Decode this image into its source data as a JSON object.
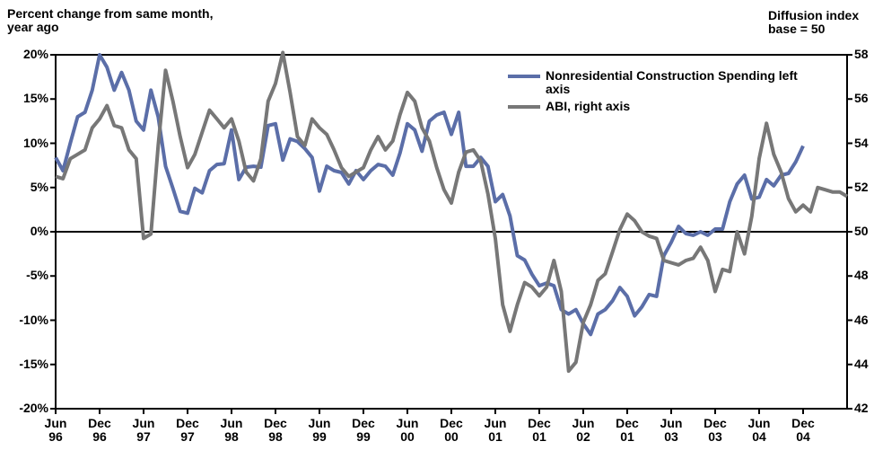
{
  "chart_data": {
    "type": "line",
    "y_axis_label": "Percent change from same month, year ago",
    "y2_axis_label": "Diffusion index base = 50",
    "x": [
      "Jun 96",
      null,
      null,
      null,
      null,
      null,
      "Dec 96",
      null,
      null,
      null,
      null,
      null,
      "Jun 97",
      null,
      null,
      null,
      null,
      null,
      "Dec 97",
      null,
      null,
      null,
      null,
      null,
      "Jun 98",
      null,
      null,
      null,
      null,
      null,
      "Dec 98",
      null,
      null,
      null,
      null,
      null,
      "Jun 99",
      null,
      null,
      null,
      null,
      null,
      "Dec 99",
      null,
      null,
      null,
      null,
      null,
      "Jun 00",
      null,
      null,
      null,
      null,
      null,
      "Dec 00",
      null,
      null,
      null,
      null,
      null,
      "Jun 01",
      null,
      null,
      null,
      null,
      null,
      "Dec 01",
      null,
      null,
      null,
      null,
      null,
      "Jun 02",
      null,
      null,
      null,
      null,
      null,
      "Dec 01",
      null,
      null,
      null,
      null,
      null,
      "Jun 03",
      null,
      null,
      null,
      null,
      null,
      "Dec 03",
      null,
      null,
      null,
      null,
      null,
      "Jun 04",
      null,
      null,
      null,
      null,
      null,
      "Dec 04",
      null,
      null,
      null,
      null,
      null,
      null
    ],
    "series": [
      {
        "name": "Nonresidential Construction Spending left axis",
        "color": "#5b6ea8",
        "axis": "y",
        "values": [
          8.4,
          6.9,
          10,
          13,
          13.5,
          16,
          20,
          18.6,
          16,
          18,
          16,
          12.5,
          11.5,
          16,
          13,
          7.4,
          4.9,
          2.3,
          2.1,
          4.9,
          4.4,
          6.9,
          7.6,
          7.7,
          11.5,
          5.9,
          7.3,
          7.4,
          7.3,
          12,
          12.2,
          8.1,
          10.5,
          10.2,
          9.4,
          8.4,
          4.6,
          7.4,
          6.9,
          6.7,
          5.4,
          6.9,
          5.9,
          6.9,
          7.6,
          7.4,
          6.4,
          8.9,
          12.2,
          11.5,
          9.1,
          12.5,
          13.2,
          13.5,
          11,
          13.5,
          7.4,
          7.4,
          8.4,
          7.4,
          3.4,
          4.2,
          1.8,
          -2.7,
          -3.2,
          -4.8,
          -6.1,
          -5.8,
          -6.1,
          -8.8,
          -9.3,
          -8.8,
          -10.4,
          -11.6,
          -9.3,
          -8.8,
          -7.8,
          -6.3,
          -7.3,
          -9.5,
          -8.5,
          -7.1,
          -7.3,
          -2.7,
          -1.2,
          0.6,
          -0.2,
          -0.4,
          0,
          -0.4,
          0.3,
          0.3,
          3.4,
          5.4,
          6.4,
          3.7,
          3.9,
          5.9,
          5.2,
          6.4,
          6.6,
          7.9,
          9.7,
          null,
          null,
          null,
          null,
          null,
          null
        ]
      },
      {
        "name": "ABI, right axis",
        "color": "#777777",
        "axis": "y2",
        "values": [
          52.5,
          52.4,
          53.3,
          53.5,
          53.7,
          54.7,
          55.1,
          55.7,
          54.8,
          54.7,
          53.7,
          53.3,
          49.7,
          49.9,
          53.9,
          57.3,
          55.9,
          54.3,
          52.9,
          53.5,
          54.5,
          55.5,
          55.1,
          54.7,
          55.1,
          54.1,
          52.7,
          52.3,
          53.3,
          55.9,
          56.7,
          58.1,
          56.3,
          54.3,
          53.9,
          55.1,
          54.7,
          54.4,
          53.7,
          52.9,
          52.5,
          52.7,
          52.9,
          53.7,
          54.3,
          53.7,
          54.1,
          55.3,
          56.3,
          55.9,
          54.7,
          54.1,
          52.9,
          51.9,
          51.3,
          52.7,
          53.6,
          53.7,
          53.2,
          51.7,
          49.7,
          46.7,
          45.5,
          46.7,
          47.7,
          47.5,
          47.1,
          47.5,
          48.7,
          47.3,
          43.7,
          44.1,
          45.9,
          46.7,
          47.8,
          48.1,
          49.1,
          50.1,
          50.8,
          50.5,
          50,
          49.8,
          49.7,
          48.7,
          48.6,
          48.5,
          48.7,
          48.8,
          49.3,
          48.7,
          47.3,
          48.3,
          48.2,
          50,
          49,
          50.7,
          53.3,
          54.9,
          53.5,
          52.7,
          51.5,
          50.9,
          51.2,
          50.9,
          52,
          51.9,
          51.8,
          51.8,
          51.6
        ]
      }
    ],
    "ylim": [
      -20,
      20
    ],
    "yticks": [
      {
        "value": -20,
        "label": "-20%"
      },
      {
        "value": -15,
        "label": "-15%"
      },
      {
        "value": -10,
        "label": "-10%"
      },
      {
        "value": -5,
        "label": "-5%"
      },
      {
        "value": 0,
        "label": "0%"
      },
      {
        "value": 5,
        "label": "5%"
      },
      {
        "value": 10,
        "label": "10%"
      },
      {
        "value": 15,
        "label": "15%"
      },
      {
        "value": 20,
        "label": "20%"
      }
    ],
    "y2lim": [
      42,
      58
    ],
    "y2ticks": [
      42,
      44,
      46,
      48,
      50,
      52,
      54,
      56,
      58
    ],
    "zero_line": true,
    "legend": "upper right"
  }
}
